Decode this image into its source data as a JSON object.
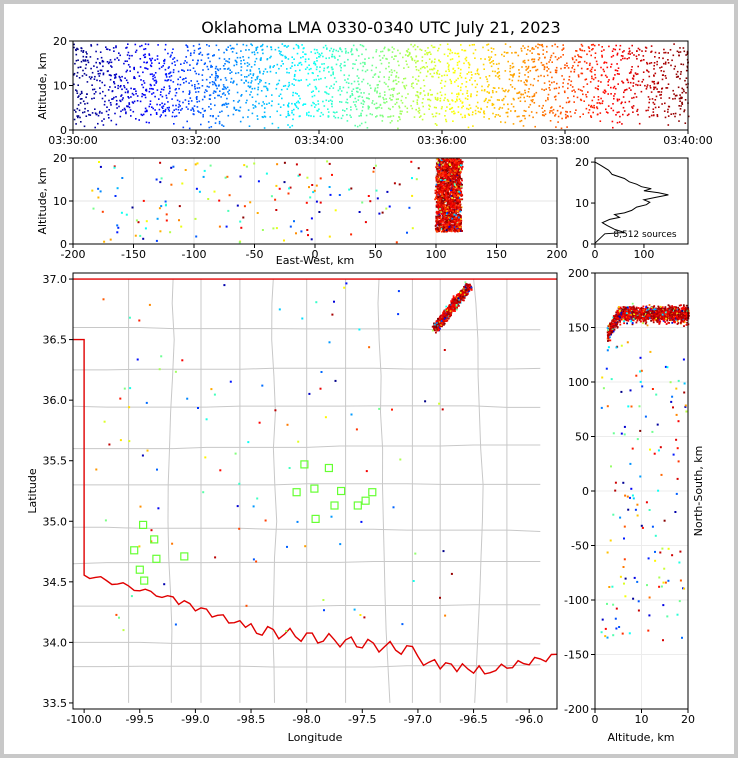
{
  "title": "Oklahoma LMA 0330-0340 UTC July 21, 2023",
  "source_count_label": "8,512 sources",
  "chart_data": [
    {
      "id": "time-height",
      "type": "scatter",
      "xlabel": "",
      "ylabel": "Altitude, km",
      "x_ticks": [
        "03:30:00",
        "03:32:00",
        "03:34:00",
        "03:36:00",
        "03:38:00",
        "03:40:00"
      ],
      "xlim": [
        0,
        10
      ],
      "ylim": [
        0,
        20
      ],
      "y_ticks": [
        0,
        10,
        20
      ],
      "color_by": "time (jet colormap)"
    },
    {
      "id": "ew-height",
      "type": "scatter",
      "xlabel": "East-West, km",
      "ylabel": "Altitude, km",
      "xlim": [
        -200,
        200
      ],
      "x_ticks": [
        -200,
        -150,
        -100,
        -50,
        0,
        50,
        100,
        150,
        200
      ],
      "ylim": [
        0,
        20
      ],
      "y_ticks": [
        0,
        10,
        20
      ]
    },
    {
      "id": "altitude-histogram",
      "type": "line",
      "xlabel": "",
      "ylabel": "",
      "xlim": [
        0,
        190
      ],
      "x_ticks": [
        0,
        100
      ],
      "ylim": [
        0,
        21
      ],
      "y_ticks": [
        0,
        10,
        20
      ],
      "profile": [
        [
          0,
          0.2
        ],
        [
          20,
          2.5
        ],
        [
          60,
          2.8
        ],
        [
          40,
          3.6
        ],
        [
          25,
          4.5
        ],
        [
          15,
          5.2
        ],
        [
          30,
          6
        ],
        [
          50,
          6.5
        ],
        [
          40,
          7.2
        ],
        [
          60,
          7.6
        ],
        [
          75,
          8.2
        ],
        [
          85,
          9
        ],
        [
          105,
          9.6
        ],
        [
          112,
          10.2
        ],
        [
          100,
          10.8
        ],
        [
          125,
          11.4
        ],
        [
          150,
          12
        ],
        [
          130,
          12.5
        ],
        [
          100,
          13
        ],
        [
          115,
          13.5
        ],
        [
          95,
          14
        ],
        [
          85,
          14.6
        ],
        [
          70,
          15.2
        ],
        [
          60,
          16
        ],
        [
          35,
          17
        ],
        [
          28,
          18
        ],
        [
          12,
          19.2
        ],
        [
          0,
          20
        ]
      ]
    },
    {
      "id": "plan-view",
      "type": "scatter",
      "xlabel": "Longitude",
      "ylabel": "Latitude",
      "xlim": [
        -100.1,
        -95.75
      ],
      "x_ticks": [
        "-100.0",
        "-99.5",
        "-99.0",
        "-98.5",
        "-98.0",
        "-97.5",
        "-97.0",
        "-96.5",
        "-96.0"
      ],
      "ylim": [
        33.45,
        37.05
      ],
      "y_ticks": [
        "33.5",
        "34.0",
        "34.5",
        "35.0",
        "35.5",
        "36.0",
        "36.5",
        "37.0"
      ],
      "stations": [
        [
          -99.47,
          34.97
        ],
        [
          -99.37,
          34.85
        ],
        [
          -99.55,
          34.76
        ],
        [
          -99.35,
          34.69
        ],
        [
          -99.5,
          34.6
        ],
        [
          -99.46,
          34.51
        ],
        [
          -99.1,
          34.71
        ],
        [
          -98.02,
          35.47
        ],
        [
          -97.8,
          35.44
        ],
        [
          -98.09,
          35.24
        ],
        [
          -97.93,
          35.27
        ],
        [
          -97.92,
          35.02
        ],
        [
          -97.75,
          35.13
        ],
        [
          -97.69,
          35.25
        ],
        [
          -97.54,
          35.13
        ],
        [
          -97.47,
          35.17
        ],
        [
          -97.41,
          35.24
        ]
      ]
    },
    {
      "id": "ns-height",
      "type": "scatter",
      "xlabel": "Altitude, km",
      "ylabel": "North-South, km",
      "xlim": [
        0,
        20
      ],
      "x_ticks": [
        0,
        10,
        20
      ],
      "ylim": [
        -200,
        200
      ],
      "y_ticks": [
        -200,
        -150,
        -100,
        -50,
        0,
        50,
        100,
        150,
        200
      ]
    }
  ]
}
